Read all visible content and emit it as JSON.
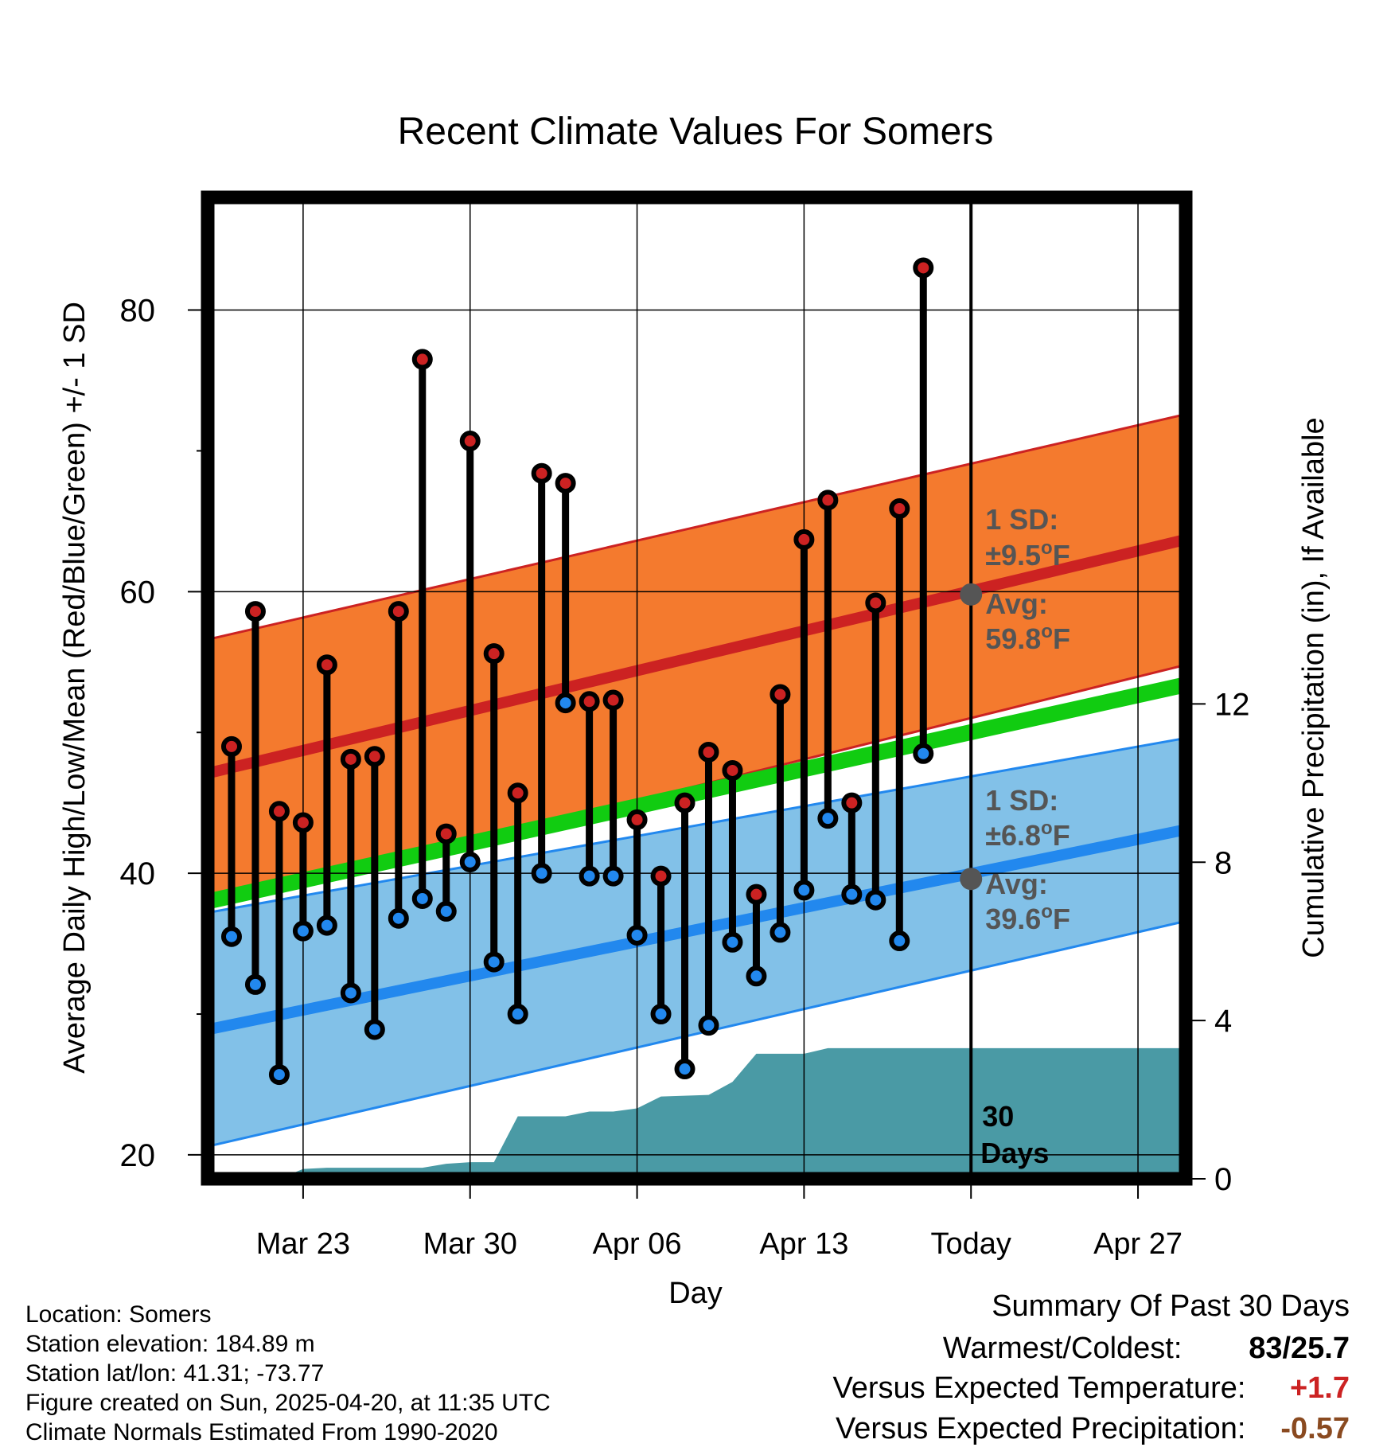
{
  "chart_data": {
    "type": "line",
    "title": "Recent Climate Values For Somers",
    "xlabel": "Day",
    "ylabel": "Average Daily High/Low/Mean (Red/Blue/Green) +/- 1 SD",
    "y2label": "Cumulative Precipitation (in), If Available",
    "x_ticks": [
      "Mar 23",
      "Mar 30",
      "Apr 06",
      "Apr 13",
      "Today",
      "Apr 27"
    ],
    "y_ticks": [
      20,
      40,
      60,
      80
    ],
    "y2_ticks": [
      0,
      4,
      8,
      12
    ],
    "xlim": [
      "2025-03-19",
      "2025-04-29"
    ],
    "ylim": [
      18.3,
      88
    ],
    "y2lim": [
      0,
      24.8
    ],
    "today": "2025-04-20",
    "today_label": [
      "30",
      "Days"
    ],
    "grid": true,
    "normals": {
      "dates": [
        "2025-03-19",
        "2025-04-29"
      ],
      "high_mean": [
        47.1,
        63.7
      ],
      "high_upper": [
        56.6,
        72.6
      ],
      "high_lower": [
        37.6,
        54.8
      ],
      "low_mean": [
        28.9,
        43.1
      ],
      "low_upper": [
        37.2,
        49.6
      ],
      "low_lower": [
        20.6,
        36.6
      ],
      "daily_mean": [
        38.0,
        53.4
      ]
    },
    "series": [
      {
        "name": "High",
        "color": "#cc2222",
        "values": [
          49.0,
          58.6,
          44.4,
          43.6,
          54.8,
          48.1,
          48.3,
          58.6,
          76.5,
          42.8,
          70.7,
          55.6,
          45.7,
          68.4,
          67.7,
          52.2,
          52.3,
          43.8,
          39.8,
          45.0,
          48.6,
          47.3,
          38.5,
          52.7,
          63.7,
          66.5,
          45.0,
          59.2,
          65.9,
          83.0
        ]
      },
      {
        "name": "Low",
        "color": "#2288ee",
        "values": [
          35.5,
          32.1,
          25.7,
          35.9,
          36.3,
          31.5,
          28.9,
          36.8,
          38.2,
          37.3,
          40.8,
          33.7,
          30.0,
          40.0,
          52.1,
          39.8,
          39.8,
          35.6,
          30.0,
          26.1,
          29.2,
          35.1,
          32.7,
          35.8,
          38.8,
          43.9,
          38.5,
          38.1,
          35.2,
          48.5
        ]
      }
    ],
    "precip": {
      "color": "#4a9aa5",
      "dates": [
        "2025-03-19",
        "2025-03-22",
        "2025-03-23",
        "2025-03-24",
        "2025-03-28",
        "2025-03-29",
        "2025-03-30",
        "2025-03-31",
        "2025-04-01",
        "2025-04-03",
        "2025-04-04",
        "2025-04-05",
        "2025-04-06",
        "2025-04-07",
        "2025-04-08",
        "2025-04-09",
        "2025-04-10",
        "2025-04-11",
        "2025-04-12",
        "2025-04-13",
        "2025-04-14",
        "2025-04-15",
        "2025-04-19",
        "2025-04-20",
        "2025-04-29"
      ],
      "values": [
        0,
        0,
        0.25,
        0.28,
        0.28,
        0.38,
        0.42,
        0.42,
        1.58,
        1.58,
        1.7,
        1.7,
        1.78,
        2.08,
        2.1,
        2.12,
        2.45,
        3.16,
        3.16,
        3.16,
        3.3,
        3.3,
        3.3,
        3.3,
        3.3
      ]
    },
    "annotations": {
      "high": {
        "sd_label": "1 SD:",
        "sd_value": "±9.5°F",
        "avg_label": "Avg:",
        "avg_value": "59.8°F",
        "avg": 59.8
      },
      "low": {
        "sd_label": "1 SD:",
        "sd_value": "±6.8°F",
        "avg_label": "Avg:",
        "avg_value": "39.6°F",
        "avg": 39.6
      }
    }
  },
  "colors": {
    "high_band": "#f47a2e",
    "high_line": "#cc2222",
    "low_band": "#82c1e8",
    "low_line": "#2288ee",
    "mean_line": "#11cc11",
    "annotation": "#555555",
    "avg_dot": "#555555"
  },
  "info": {
    "location": "Location: Somers",
    "elevation": "Station elevation: 184.89 m",
    "latlon": "Station lat/lon: 41.31; -73.77",
    "created": "Figure created on Sun, 2025-04-20, at 11:35 UTC",
    "normals": "Climate Normals Estimated From 1990-2020"
  },
  "summary": {
    "title": "Summary Of Past 30 Days",
    "warm_label": "Warmest/Coldest:",
    "warm_value": "83/25.7",
    "temp_label": "Versus Expected Temperature:",
    "temp_value": "+1.7",
    "temp_color": "#cc2222",
    "precip_label": "Versus Expected Precipitation:",
    "precip_value": "-0.57",
    "precip_color": "#8a4a20"
  }
}
